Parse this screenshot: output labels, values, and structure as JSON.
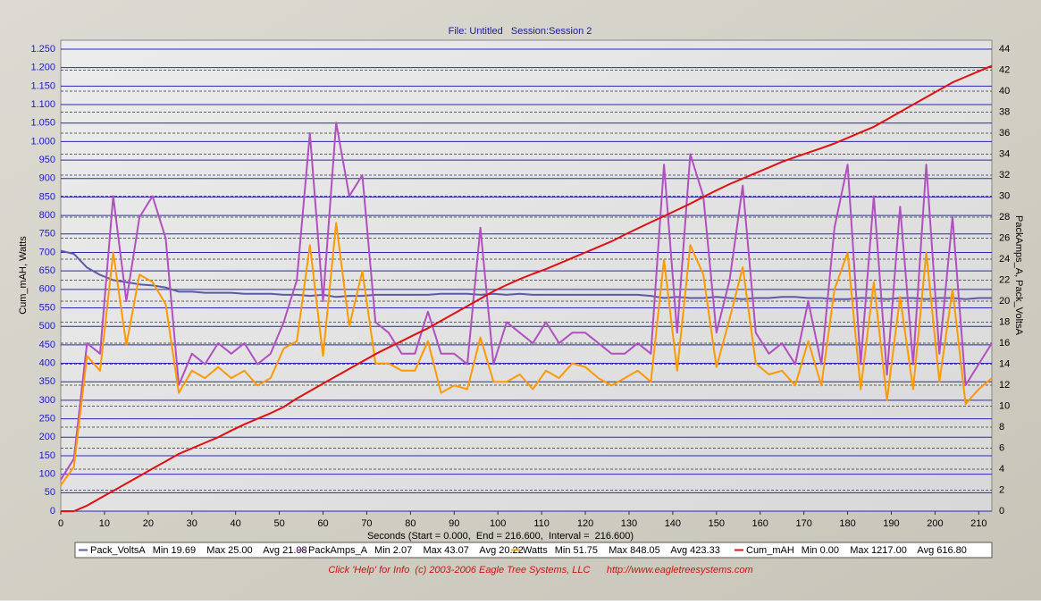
{
  "chart_data": {
    "type": "line",
    "title": "File: Untitled   Session:Session 2",
    "xlabel": "Seconds (Start = 0.000,  End = 216.600,  Interval =  216.600)",
    "ylabel": "Cum_mAH, Watts",
    "y2label": "PackAmps_A, Pack_VoltsA",
    "footer": "Click 'Help' for Info  (c) 2003-2006 Eagle Tree Systems, LLC      http://www.eagletreesystems.com",
    "x": [
      0,
      3,
      6,
      9,
      12,
      15,
      18,
      21,
      24,
      27,
      30,
      33,
      36,
      39,
      42,
      45,
      48,
      51,
      54,
      57,
      60,
      63,
      66,
      69,
      72,
      75,
      78,
      81,
      84,
      87,
      90,
      93,
      96,
      99,
      102,
      105,
      108,
      111,
      114,
      117,
      120,
      123,
      126,
      129,
      132,
      135,
      138,
      141,
      144,
      147,
      150,
      153,
      156,
      159,
      162,
      165,
      168,
      171,
      174,
      177,
      180,
      183,
      186,
      189,
      192,
      195,
      198,
      201,
      204,
      207,
      210,
      213
    ],
    "xlim": [
      0,
      213
    ],
    "xticks": [
      0,
      10,
      20,
      30,
      40,
      50,
      60,
      70,
      80,
      90,
      100,
      110,
      120,
      130,
      140,
      150,
      160,
      170,
      180,
      190,
      200,
      210
    ],
    "ylim": [
      0,
      1250
    ],
    "yticks": [
      0,
      50,
      100,
      150,
      200,
      250,
      300,
      350,
      400,
      450,
      500,
      550,
      600,
      650,
      700,
      750,
      800,
      850,
      900,
      950,
      {
        "value": 1000,
        "label": "1.000"
      },
      {
        "value": 1050,
        "label": "1.050"
      },
      {
        "value": 1100,
        "label": "1.100"
      },
      {
        "value": 1150,
        "label": "1.150"
      },
      {
        "value": 1200,
        "label": "1.200"
      },
      {
        "value": 1250,
        "label": "1.250"
      }
    ],
    "y2lim": [
      0,
      44
    ],
    "y2ticks": [
      0,
      2,
      4,
      6,
      8,
      10,
      12,
      14,
      16,
      18,
      20,
      22,
      24,
      26,
      28,
      30,
      32,
      34,
      36,
      38,
      40,
      42,
      44
    ],
    "grid": true,
    "series": [
      {
        "name": "Pack_VoltsA",
        "stats": "Min 19.69    Max 25.00    Avg 21.08",
        "color": "#5a5aa8",
        "axis": "y2",
        "values": [
          24.8,
          24.5,
          23.2,
          22.5,
          22.0,
          21.8,
          21.6,
          21.5,
          21.3,
          20.9,
          20.9,
          20.8,
          20.8,
          20.8,
          20.7,
          20.7,
          20.7,
          20.6,
          20.6,
          20.5,
          20.6,
          20.4,
          20.5,
          20.5,
          20.6,
          20.6,
          20.6,
          20.6,
          20.6,
          20.7,
          20.7,
          20.7,
          20.6,
          20.7,
          20.6,
          20.7,
          20.6,
          20.6,
          20.6,
          20.6,
          20.6,
          20.6,
          20.6,
          20.6,
          20.6,
          20.5,
          20.3,
          20.4,
          20.3,
          20.3,
          20.4,
          20.3,
          20.2,
          20.3,
          20.3,
          20.4,
          20.4,
          20.3,
          20.3,
          20.2,
          20.2,
          20.3,
          20.3,
          20.2,
          20.3,
          20.3,
          20.2,
          20.3,
          20.3,
          20.2,
          20.3,
          20.3
        ]
      },
      {
        "name": "PackAmps_A",
        "stats": "Min 2.07    Max 43.07    Avg 20.22",
        "color": "#b050c0",
        "axis": "y2",
        "values": [
          3,
          5,
          16,
          15,
          30,
          20,
          28,
          30,
          26,
          12,
          15,
          14,
          16,
          15,
          16,
          14,
          15,
          18,
          22,
          36,
          20,
          37,
          30,
          32,
          18,
          17,
          15,
          15,
          19,
          15,
          15,
          14,
          27,
          14,
          18,
          17,
          16,
          18,
          16,
          17,
          17,
          16,
          15,
          15,
          16,
          15,
          33,
          17,
          34,
          30,
          17,
          22,
          31,
          17,
          15,
          16,
          14,
          20,
          14,
          27,
          33,
          14,
          30,
          13,
          29,
          14,
          33,
          15,
          28,
          12,
          14,
          16
        ]
      },
      {
        "name": "Watts",
        "stats": "Min 51.75    Max 848.05    Avg 423.33",
        "color": "#ff9900",
        "values": [
          70,
          120,
          420,
          380,
          700,
          450,
          640,
          620,
          560,
          320,
          380,
          360,
          390,
          360,
          380,
          340,
          360,
          440,
          460,
          720,
          420,
          780,
          500,
          650,
          400,
          400,
          380,
          380,
          460,
          320,
          340,
          330,
          470,
          350,
          350,
          370,
          330,
          380,
          360,
          400,
          390,
          360,
          340,
          360,
          380,
          350,
          680,
          380,
          720,
          640,
          390,
          520,
          660,
          400,
          370,
          380,
          340,
          460,
          340,
          600,
          700,
          330,
          620,
          300,
          580,
          330,
          700,
          350,
          600,
          290,
          330,
          360
        ]
      },
      {
        "name": "Cum_mAH",
        "stats": "Min 0.00    Max 1217.00    Avg 616.80",
        "color": "#e01010",
        "values": [
          0,
          0,
          15,
          35,
          55,
          75,
          95,
          115,
          135,
          155,
          170,
          185,
          200,
          218,
          235,
          250,
          265,
          282,
          305,
          325,
          345,
          365,
          385,
          405,
          425,
          443,
          460,
          478,
          495,
          515,
          535,
          555,
          575,
          595,
          612,
          628,
          642,
          655,
          670,
          685,
          700,
          715,
          730,
          748,
          765,
          782,
          798,
          815,
          832,
          850,
          868,
          885,
          900,
          915,
          930,
          945,
          958,
          970,
          982,
          995,
          1010,
          1025,
          1040,
          1060,
          1080,
          1100,
          1120,
          1140,
          1160,
          1175,
          1190,
          1205
        ]
      }
    ]
  }
}
